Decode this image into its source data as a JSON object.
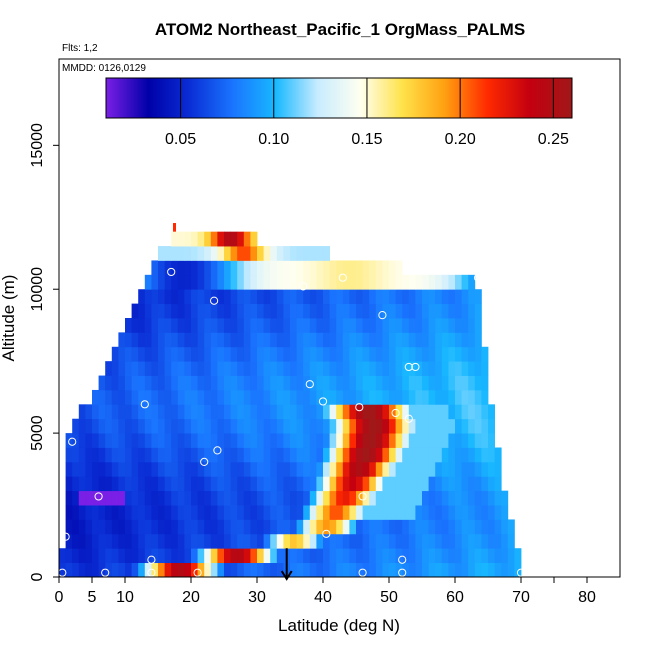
{
  "chart_data": {
    "type": "heatmap",
    "title": "ATOM2 Northeast_Pacific_1 OrgMass_PALMS",
    "annotations": {
      "flights": "Flts: 1,2",
      "dates": "MMDD: 0126,0129"
    },
    "xlabel": "Latitude (deg N)",
    "ylabel": "Altitude (m)",
    "xlim": [
      0,
      85
    ],
    "ylim": [
      0,
      18000
    ],
    "xticks": [
      0,
      5,
      10,
      20,
      30,
      40,
      50,
      60,
      70,
      80
    ],
    "xtick_labels": [
      "0",
      "5",
      "10",
      "20",
      "30",
      "40",
      "50",
      "60",
      "70",
      "80"
    ],
    "yticks": [
      0,
      5000,
      10000,
      15000
    ],
    "ytick_labels": [
      "0",
      "5000",
      "10000",
      "15000"
    ],
    "colorbar": {
      "range": [
        0.01,
        0.26
      ],
      "ticks": [
        0.05,
        0.1,
        0.15,
        0.2,
        0.25
      ],
      "tick_labels": [
        "0.05",
        "0.10",
        "0.15",
        "0.20",
        "0.25"
      ],
      "dividers": [
        0.05,
        0.1,
        0.15,
        0.2,
        0.25
      ],
      "colors": [
        "#7a1fe6",
        "#0000a8",
        "#0b2fd6",
        "#1a75ff",
        "#18b8ff",
        "#c8ecff",
        "#fffff0",
        "#ffe24a",
        "#ffa010",
        "#ff2a00",
        "#c40010",
        "#a01818"
      ]
    },
    "vertical_profile": {
      "bands_m": [
        [
          0,
          500
        ],
        [
          500,
          1000
        ],
        [
          1000,
          1500
        ],
        [
          1500,
          2000
        ],
        [
          2000,
          2500
        ],
        [
          2500,
          3000
        ],
        [
          3000,
          3500
        ],
        [
          3500,
          4000
        ],
        [
          4000,
          4500
        ],
        [
          4500,
          5000
        ],
        [
          5000,
          5500
        ],
        [
          5500,
          6000
        ],
        [
          6000,
          6500
        ],
        [
          6500,
          7000
        ],
        [
          7000,
          7500
        ],
        [
          7500,
          8000
        ],
        [
          8000,
          8500
        ],
        [
          8500,
          9000
        ],
        [
          9000,
          9500
        ],
        [
          9500,
          10000
        ],
        [
          10000,
          10500
        ],
        [
          10500,
          11000
        ],
        [
          11000,
          11500
        ],
        [
          11500,
          12000
        ]
      ],
      "lat_extent": [
        [
          0,
          70
        ],
        [
          0,
          70
        ],
        [
          1,
          69
        ],
        [
          1,
          69
        ],
        [
          1,
          68
        ],
        [
          1,
          68
        ],
        [
          1,
          67
        ],
        [
          1,
          67
        ],
        [
          1,
          67
        ],
        [
          1,
          66
        ],
        [
          2,
          66
        ],
        [
          3,
          66
        ],
        [
          5,
          65
        ],
        [
          6,
          65
        ],
        [
          7,
          65
        ],
        [
          8,
          65
        ],
        [
          9,
          64
        ],
        [
          10,
          64
        ],
        [
          11,
          64
        ],
        [
          12,
          64
        ],
        [
          13,
          63
        ],
        [
          14,
          52
        ],
        [
          15,
          41
        ],
        [
          17,
          30
        ]
      ]
    },
    "enhancement": {
      "center_lat_by_altitude": [
        [
          0,
          14
        ],
        [
          1500,
          40
        ],
        [
          3000,
          44
        ],
        [
          4500,
          47
        ],
        [
          5500,
          48
        ],
        [
          6000,
          46
        ]
      ],
      "peak_value": 0.26
    },
    "arrow_marker": {
      "lat": 34.5,
      "altitude_m": 500
    },
    "top_spike": {
      "lat": 17.5,
      "altitude_m": 12300
    },
    "sample_points": [
      [
        0.5,
        150
      ],
      [
        1,
        1400
      ],
      [
        2,
        4700
      ],
      [
        2,
        6100
      ],
      [
        6,
        2800
      ],
      [
        7,
        150
      ],
      [
        14,
        150
      ],
      [
        14,
        600
      ],
      [
        13,
        6000
      ],
      [
        17,
        10600
      ],
      [
        21,
        150
      ],
      [
        22,
        4000
      ],
      [
        23.5,
        9600
      ],
      [
        24,
        4400
      ],
      [
        37,
        10100
      ],
      [
        38,
        6700
      ],
      [
        40,
        6100
      ],
      [
        40.5,
        1500
      ],
      [
        43,
        10400
      ],
      [
        45.5,
        5900
      ],
      [
        46,
        2800
      ],
      [
        46,
        150
      ],
      [
        49,
        9100
      ],
      [
        51,
        5700
      ],
      [
        52,
        600
      ],
      [
        52,
        150
      ],
      [
        53,
        5500
      ],
      [
        53,
        7300
      ],
      [
        54,
        7300
      ],
      [
        63.5,
        10400
      ],
      [
        70,
        150
      ]
    ]
  }
}
